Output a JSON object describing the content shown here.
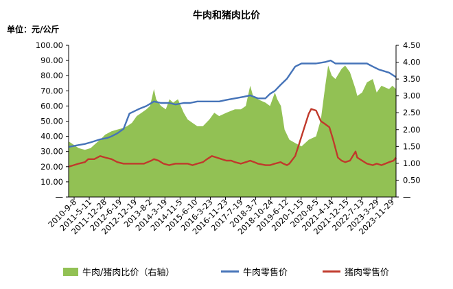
{
  "title": "牛肉和猪肉比价",
  "unit_label": "单位：元/公斤",
  "chart_data": {
    "type": "line",
    "title": "牛肉和猪肉比价",
    "left_axis": {
      "ylim": [
        0,
        100
      ],
      "ticks": [
        "—",
        "10.00",
        "20.00",
        "30.00",
        "40.00",
        "50.00",
        "60.00",
        "70.00",
        "80.00",
        "90.00",
        "100.00"
      ]
    },
    "right_axis": {
      "ylim": [
        0,
        4.5
      ],
      "ticks": [
        "—",
        "0.50",
        "1.00",
        "1.50",
        "2.00",
        "2.50",
        "3.00",
        "3.50",
        "4.00",
        "4.50"
      ]
    },
    "x_tick_labels": [
      "2010-9-8",
      "2011-5-11",
      "2011-12-28",
      "2012-6-19",
      "2012-12-19",
      "2013-8-2",
      "2014-3-19",
      "2014-11-5",
      "2015-6-10",
      "2016-3-23",
      "2016-11-23",
      "2017-7-19",
      "2018-3-7",
      "2018-10-24",
      "2019-6-12",
      "2020-1-15",
      "2020-8-5",
      "2021-4-14",
      "2021-12-15",
      "2022-7-13",
      "2023-3-29",
      "2023-11-29"
    ],
    "x_range": [
      2010.69,
      2024.2
    ],
    "series": [
      {
        "name": "牛肉/猪肉比价（右轴）",
        "kind": "area",
        "axis": "right",
        "color": "#92c154",
        "x": [
          2010.69,
          2010.9,
          2011.1,
          2011.36,
          2011.6,
          2011.75,
          2011.99,
          2012.2,
          2012.46,
          2012.7,
          2012.96,
          2013.1,
          2013.3,
          2013.5,
          2013.7,
          2013.9,
          2014.05,
          2014.21,
          2014.3,
          2014.5,
          2014.7,
          2014.85,
          2015.0,
          2015.2,
          2015.44,
          2015.6,
          2015.8,
          2016.0,
          2016.23,
          2016.5,
          2016.7,
          2016.9,
          2017.2,
          2017.55,
          2017.8,
          2018.0,
          2018.18,
          2018.3,
          2018.5,
          2018.81,
          2019.0,
          2019.2,
          2019.3,
          2019.45,
          2019.6,
          2019.8,
          2020.04,
          2020.3,
          2020.6,
          2020.9,
          2021.1,
          2021.28,
          2021.4,
          2021.55,
          2021.7,
          2021.95,
          2022.1,
          2022.3,
          2022.53,
          2022.6,
          2022.8,
          2023.0,
          2023.24,
          2023.4,
          2023.6,
          2023.91,
          2024.05,
          2024.2
        ],
        "y": [
          1.65,
          1.55,
          1.45,
          1.4,
          1.45,
          1.55,
          1.7,
          1.85,
          1.95,
          2.0,
          2.05,
          2.1,
          2.2,
          2.4,
          2.5,
          2.6,
          2.7,
          3.2,
          2.9,
          2.7,
          2.6,
          2.9,
          2.8,
          2.9,
          2.5,
          2.3,
          2.2,
          2.1,
          2.1,
          2.3,
          2.5,
          2.4,
          2.5,
          2.6,
          2.6,
          2.7,
          3.3,
          3.0,
          2.9,
          2.8,
          2.7,
          3.1,
          2.9,
          2.7,
          2.0,
          1.7,
          1.6,
          1.5,
          1.7,
          1.8,
          2.3,
          3.3,
          3.9,
          3.6,
          3.5,
          3.8,
          3.9,
          3.7,
          3.2,
          3.0,
          3.1,
          3.4,
          3.5,
          3.1,
          3.3,
          3.2,
          3.3,
          3.2
        ]
      },
      {
        "name": "牛肉零售价",
        "kind": "line",
        "axis": "left",
        "color": "#4573b8",
        "x": [
          2010.69,
          2011.0,
          2011.36,
          2011.6,
          2011.99,
          2012.3,
          2012.46,
          2012.7,
          2012.96,
          2013.2,
          2013.59,
          2013.9,
          2014.21,
          2014.5,
          2014.84,
          2015.1,
          2015.44,
          2015.7,
          2016.0,
          2016.23,
          2016.5,
          2016.9,
          2017.2,
          2017.55,
          2017.9,
          2018.18,
          2018.5,
          2018.81,
          2019.0,
          2019.2,
          2019.44,
          2019.7,
          2020.04,
          2020.3,
          2020.6,
          2020.9,
          2021.28,
          2021.5,
          2021.7,
          2021.95,
          2022.2,
          2022.53,
          2022.8,
          2023.0,
          2023.24,
          2023.5,
          2023.91,
          2024.2
        ],
        "y": [
          33,
          34,
          35,
          36,
          38,
          39,
          40,
          42,
          45,
          55,
          58,
          60,
          63,
          62,
          62,
          61,
          62,
          62,
          63,
          63,
          63,
          63,
          64,
          65,
          66,
          67,
          65,
          65,
          68,
          70,
          74,
          78,
          86,
          88,
          88,
          88,
          89,
          90,
          88,
          88,
          88,
          88,
          88,
          88,
          86,
          84,
          82,
          79
        ]
      },
      {
        "name": "猪肉零售价",
        "kind": "line",
        "axis": "left",
        "color": "#c0392b",
        "x": [
          2010.69,
          2010.9,
          2011.1,
          2011.36,
          2011.5,
          2011.75,
          2011.99,
          2012.2,
          2012.46,
          2012.7,
          2012.96,
          2013.1,
          2013.3,
          2013.59,
          2013.8,
          2013.95,
          2014.1,
          2014.21,
          2014.4,
          2014.6,
          2014.84,
          2015.1,
          2015.44,
          2015.6,
          2015.8,
          2016.0,
          2016.23,
          2016.4,
          2016.6,
          2016.8,
          2017.0,
          2017.2,
          2017.4,
          2017.55,
          2017.8,
          2018.0,
          2018.18,
          2018.35,
          2018.5,
          2018.81,
          2019.0,
          2019.2,
          2019.44,
          2019.55,
          2019.7,
          2019.8,
          2020.04,
          2020.2,
          2020.4,
          2020.6,
          2020.7,
          2020.9,
          2021.1,
          2021.28,
          2021.45,
          2021.6,
          2021.8,
          2021.95,
          2022.1,
          2022.3,
          2022.53,
          2022.6,
          2022.8,
          2023.0,
          2023.24,
          2023.4,
          2023.6,
          2023.91,
          2024.1,
          2024.2
        ],
        "y": [
          20,
          21,
          22,
          23,
          25,
          25,
          27,
          26,
          25,
          23,
          22,
          22,
          22,
          22,
          22,
          23,
          24,
          25,
          24,
          22,
          21,
          22,
          22,
          22,
          21,
          22,
          23,
          25,
          27,
          26,
          25,
          24,
          24,
          23,
          22,
          23,
          24,
          23,
          22,
          21,
          21,
          22,
          23,
          22,
          21,
          22,
          27,
          35,
          45,
          55,
          58,
          57,
          50,
          48,
          46,
          38,
          26,
          24,
          23,
          24,
          30,
          26,
          24,
          22,
          21,
          22,
          21,
          23,
          24,
          26
        ]
      }
    ]
  },
  "legend": [
    {
      "label": "牛肉/猪肉比价（右轴）",
      "color": "#92c154",
      "shape": "area"
    },
    {
      "label": "牛肉零售价",
      "color": "#4573b8",
      "shape": "line"
    },
    {
      "label": "猪肉零售价",
      "color": "#c0392b",
      "shape": "line"
    }
  ]
}
